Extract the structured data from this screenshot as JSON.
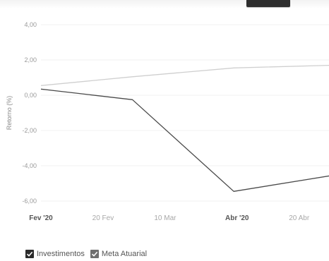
{
  "chart_data": {
    "type": "line",
    "ylabel": "Retorno (%)",
    "ylim": [
      -6.0,
      4.0
    ],
    "y_ticks": [
      "4,00",
      "2,00",
      "0,00",
      "-2,00",
      "-4,00",
      "-6,00"
    ],
    "y_tick_values": [
      4,
      2,
      0,
      -2,
      -4,
      -6
    ],
    "x_ticks": [
      {
        "label": "Fev '20",
        "bold": true,
        "date": "2020-02-01"
      },
      {
        "label": "20 Fev",
        "bold": false,
        "date": "2020-02-20"
      },
      {
        "label": "10 Mar",
        "bold": false,
        "date": "2020-03-10"
      },
      {
        "label": "Abr '20",
        "bold": true,
        "date": "2020-04-01"
      },
      {
        "label": "20 Abr",
        "bold": false,
        "date": "2020-04-20"
      }
    ],
    "xlim": [
      "2020-02-01",
      "2020-04-30"
    ],
    "series": [
      {
        "name": "Investimentos",
        "color": "#4a4a4a",
        "points": [
          {
            "date": "2020-02-01",
            "value": 0.35
          },
          {
            "date": "2020-02-29",
            "value": -0.25
          },
          {
            "date": "2020-03-31",
            "value": -5.45
          },
          {
            "date": "2020-04-30",
            "value": -4.55
          }
        ]
      },
      {
        "name": "Meta Atuarial",
        "color": "#cfcfcf",
        "points": [
          {
            "date": "2020-02-01",
            "value": 0.55
          },
          {
            "date": "2020-02-29",
            "value": 1.05
          },
          {
            "date": "2020-03-31",
            "value": 1.55
          },
          {
            "date": "2020-04-30",
            "value": 1.7
          }
        ]
      }
    ],
    "grid": true,
    "legend_position": "bottom-left"
  },
  "legend": {
    "items": [
      {
        "label": "Investimentos",
        "color": "#2b2b2b"
      },
      {
        "label": "Meta Atuarial",
        "color": "#6f6f6f"
      }
    ]
  }
}
